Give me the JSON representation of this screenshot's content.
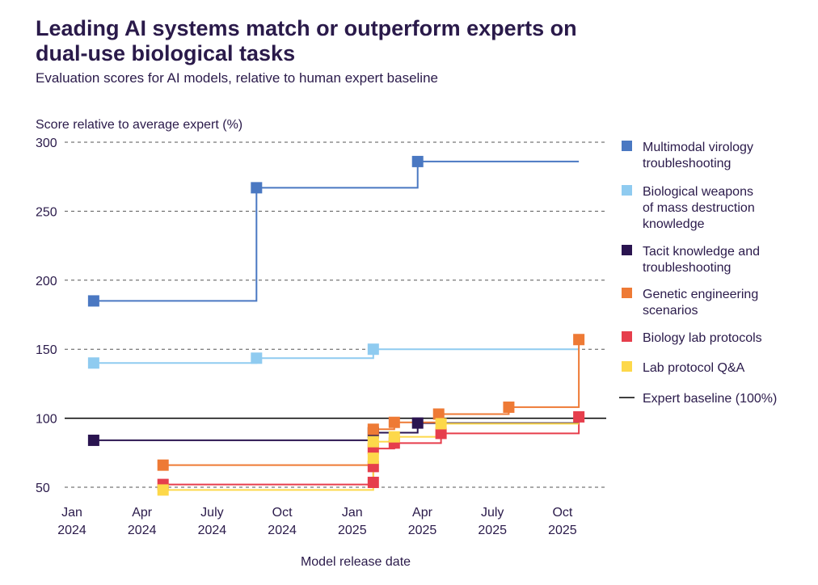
{
  "chart_data": {
    "type": "line",
    "step": "post",
    "title": "Leading AI systems match or outperform experts on dual-use biological tasks",
    "subtitle": "Evaluation scores for AI models, relative to human expert baseline",
    "ylabel": "Score relative to average expert (%)",
    "xlabel": "Model release date",
    "x_units": "months since Jan 2024",
    "xlim": [
      0,
      22
    ],
    "ylim": [
      50,
      300
    ],
    "yticks": [
      50,
      100,
      150,
      200,
      250,
      300
    ],
    "xticks": [
      {
        "x": 0,
        "label": [
          "Jan",
          "2024"
        ]
      },
      {
        "x": 3,
        "label": [
          "Apr",
          "2024"
        ]
      },
      {
        "x": 6,
        "label": [
          "July",
          "2024"
        ]
      },
      {
        "x": 9,
        "label": [
          "Oct",
          "2024"
        ]
      },
      {
        "x": 12,
        "label": [
          "Jan",
          "2025"
        ]
      },
      {
        "x": 15,
        "label": [
          "Apr",
          "2025"
        ]
      },
      {
        "x": 18,
        "label": [
          "July",
          "2025"
        ]
      },
      {
        "x": 21,
        "label": [
          "Oct",
          "2025"
        ]
      }
    ],
    "line_end_x": 21.7,
    "grid": "horizontal dashed",
    "legend_position": "right",
    "baseline": {
      "name": "Expert baseline (100%)",
      "value": 100,
      "color": "#000000"
    },
    "series": [
      {
        "name": "Multimodal virology troubleshooting",
        "legend_lines": [
          "Multimodal virology",
          "troubleshooting"
        ],
        "color": "#4a78c2",
        "points": [
          [
            0.93,
            185
          ],
          [
            7.9,
            267
          ],
          [
            14.8,
            286
          ]
        ]
      },
      {
        "name": "Biological weapons of mass destruction knowledge",
        "legend_lines": [
          "Biological weapons",
          "of mass destruction",
          "knowledge"
        ],
        "color": "#8fcbf0",
        "points": [
          [
            0.93,
            140
          ],
          [
            7.9,
            143.5
          ],
          [
            12.9,
            150
          ]
        ]
      },
      {
        "name": "Tacit knowledge and troubleshooting",
        "legend_lines": [
          "Tacit knowledge and",
          "troubleshooting"
        ],
        "color": "#2a1450",
        "points": [
          [
            0.93,
            84
          ],
          [
            12.9,
            89.5
          ],
          [
            14.8,
            96.5
          ]
        ]
      },
      {
        "name": "Genetic engineering scenarios",
        "legend_lines": [
          "Genetic engineering",
          "scenarios"
        ],
        "color": "#ee7a35",
        "points": [
          [
            3.9,
            66
          ],
          [
            12.9,
            92
          ],
          [
            13.8,
            97
          ],
          [
            15.7,
            103
          ],
          [
            18.7,
            108
          ],
          [
            21.7,
            157
          ]
        ]
      },
      {
        "name": "Biology lab protocols",
        "legend_lines": [
          "Biology lab protocols"
        ],
        "color": "#e63e4c",
        "points": [
          [
            3.9,
            52
          ],
          [
            12.9,
            53.5
          ],
          [
            12.9,
            65
          ],
          [
            12.9,
            78
          ],
          [
            13.8,
            82
          ],
          [
            15.8,
            89
          ],
          [
            21.7,
            101
          ]
        ]
      },
      {
        "name": "Lab protocol Q&A",
        "legend_lines": [
          "Lab protocol Q&A"
        ],
        "color": "#fdd84a",
        "points": [
          [
            3.9,
            48
          ],
          [
            12.9,
            71
          ],
          [
            12.9,
            83
          ],
          [
            13.8,
            86.5
          ],
          [
            15.8,
            96
          ]
        ]
      }
    ]
  }
}
